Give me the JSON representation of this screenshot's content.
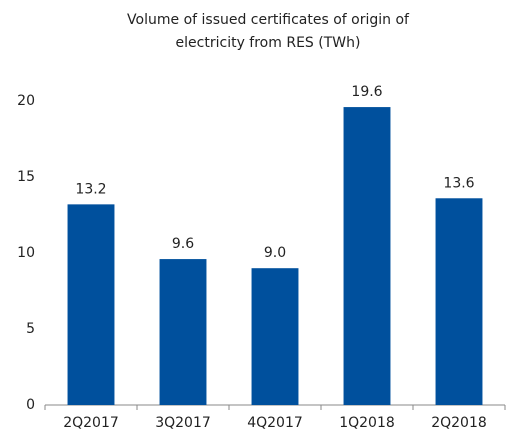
{
  "chart_data": {
    "type": "bar",
    "title": [
      "Volume of issued certificates of origin of",
      "electricity from RES (TWh)"
    ],
    "categories": [
      "2Q2017",
      "3Q2017",
      "4Q2017",
      "1Q2018",
      "2Q2018"
    ],
    "values": [
      13.2,
      9.6,
      9.0,
      19.6,
      13.6
    ],
    "value_labels": [
      "13.2",
      "9.6",
      "9.0",
      "19.6",
      "13.6"
    ],
    "color": "#00509d",
    "ylim": [
      0,
      20
    ],
    "yticks": [
      0,
      5,
      10,
      15,
      20
    ],
    "grid": false
  }
}
